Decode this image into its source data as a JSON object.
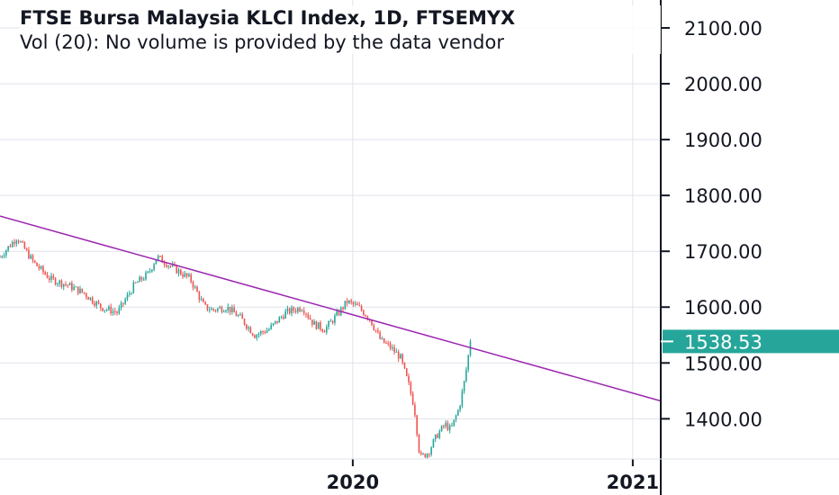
{
  "header": {
    "title": "FTSE Bursa Malaysia KLCI Index, 1D, FTSEMYX",
    "subtitle": "Vol (20): No volume is provided by the data vendor"
  },
  "colors": {
    "up": "#26a69a",
    "down": "#ef5350",
    "trendline": "#9c27b0",
    "grid": "#e0e3eb",
    "axis": "#131722",
    "price_badge": "#26a69a"
  },
  "chart_data": {
    "type": "candlestick",
    "title": "FTSE Bursa Malaysia KLCI Index, 1D, FTSEMYX",
    "y_axis": {
      "ticks": [
        1400,
        1500,
        1600,
        1700,
        1800,
        1900,
        2000,
        2100
      ],
      "tick_labels": [
        "1400.00",
        "1500.00",
        "1600.00",
        "1700.00",
        "1800.00",
        "1900.00",
        "2000.00",
        "2100.00"
      ],
      "range": [
        1328,
        2150
      ],
      "position": "right"
    },
    "x_axis": {
      "ticks": [
        2020,
        2021
      ],
      "tick_labels": [
        "2020",
        "2021"
      ],
      "range": [
        2018.74,
        2021.1
      ]
    },
    "last_price": 1538.53,
    "last_price_label": "1538.53",
    "trendline": {
      "x": [
        2018.74,
        2021.1
      ],
      "y": [
        1763,
        1432
      ]
    },
    "grid": true,
    "series": [
      {
        "x": [
          2018.74,
          2018.8,
          2018.86,
          2018.92,
          2018.98,
          2019.04,
          2019.1,
          2019.16,
          2019.22,
          2019.27,
          2019.3,
          2019.36,
          2019.42,
          2019.47,
          2019.5,
          2019.55,
          2019.6,
          2019.65,
          2019.7,
          2019.76,
          2019.82,
          2019.86,
          2019.9,
          2019.95,
          2019.98,
          2020.02,
          2020.06,
          2020.1,
          2020.13,
          2020.17,
          2020.2,
          2020.22,
          2020.24,
          2020.27,
          2020.3,
          2020.33,
          2020.35,
          2020.38,
          2020.4,
          2020.42
        ],
        "close": [
          1690,
          1725,
          1680,
          1650,
          1640,
          1625,
          1600,
          1590,
          1640,
          1660,
          1690,
          1670,
          1650,
          1600,
          1595,
          1600,
          1580,
          1550,
          1560,
          1590,
          1600,
          1570,
          1560,
          1590,
          1610,
          1600,
          1580,
          1540,
          1530,
          1510,
          1460,
          1420,
          1330,
          1340,
          1370,
          1390,
          1380,
          1420,
          1470,
          1538
        ]
      }
    ]
  }
}
